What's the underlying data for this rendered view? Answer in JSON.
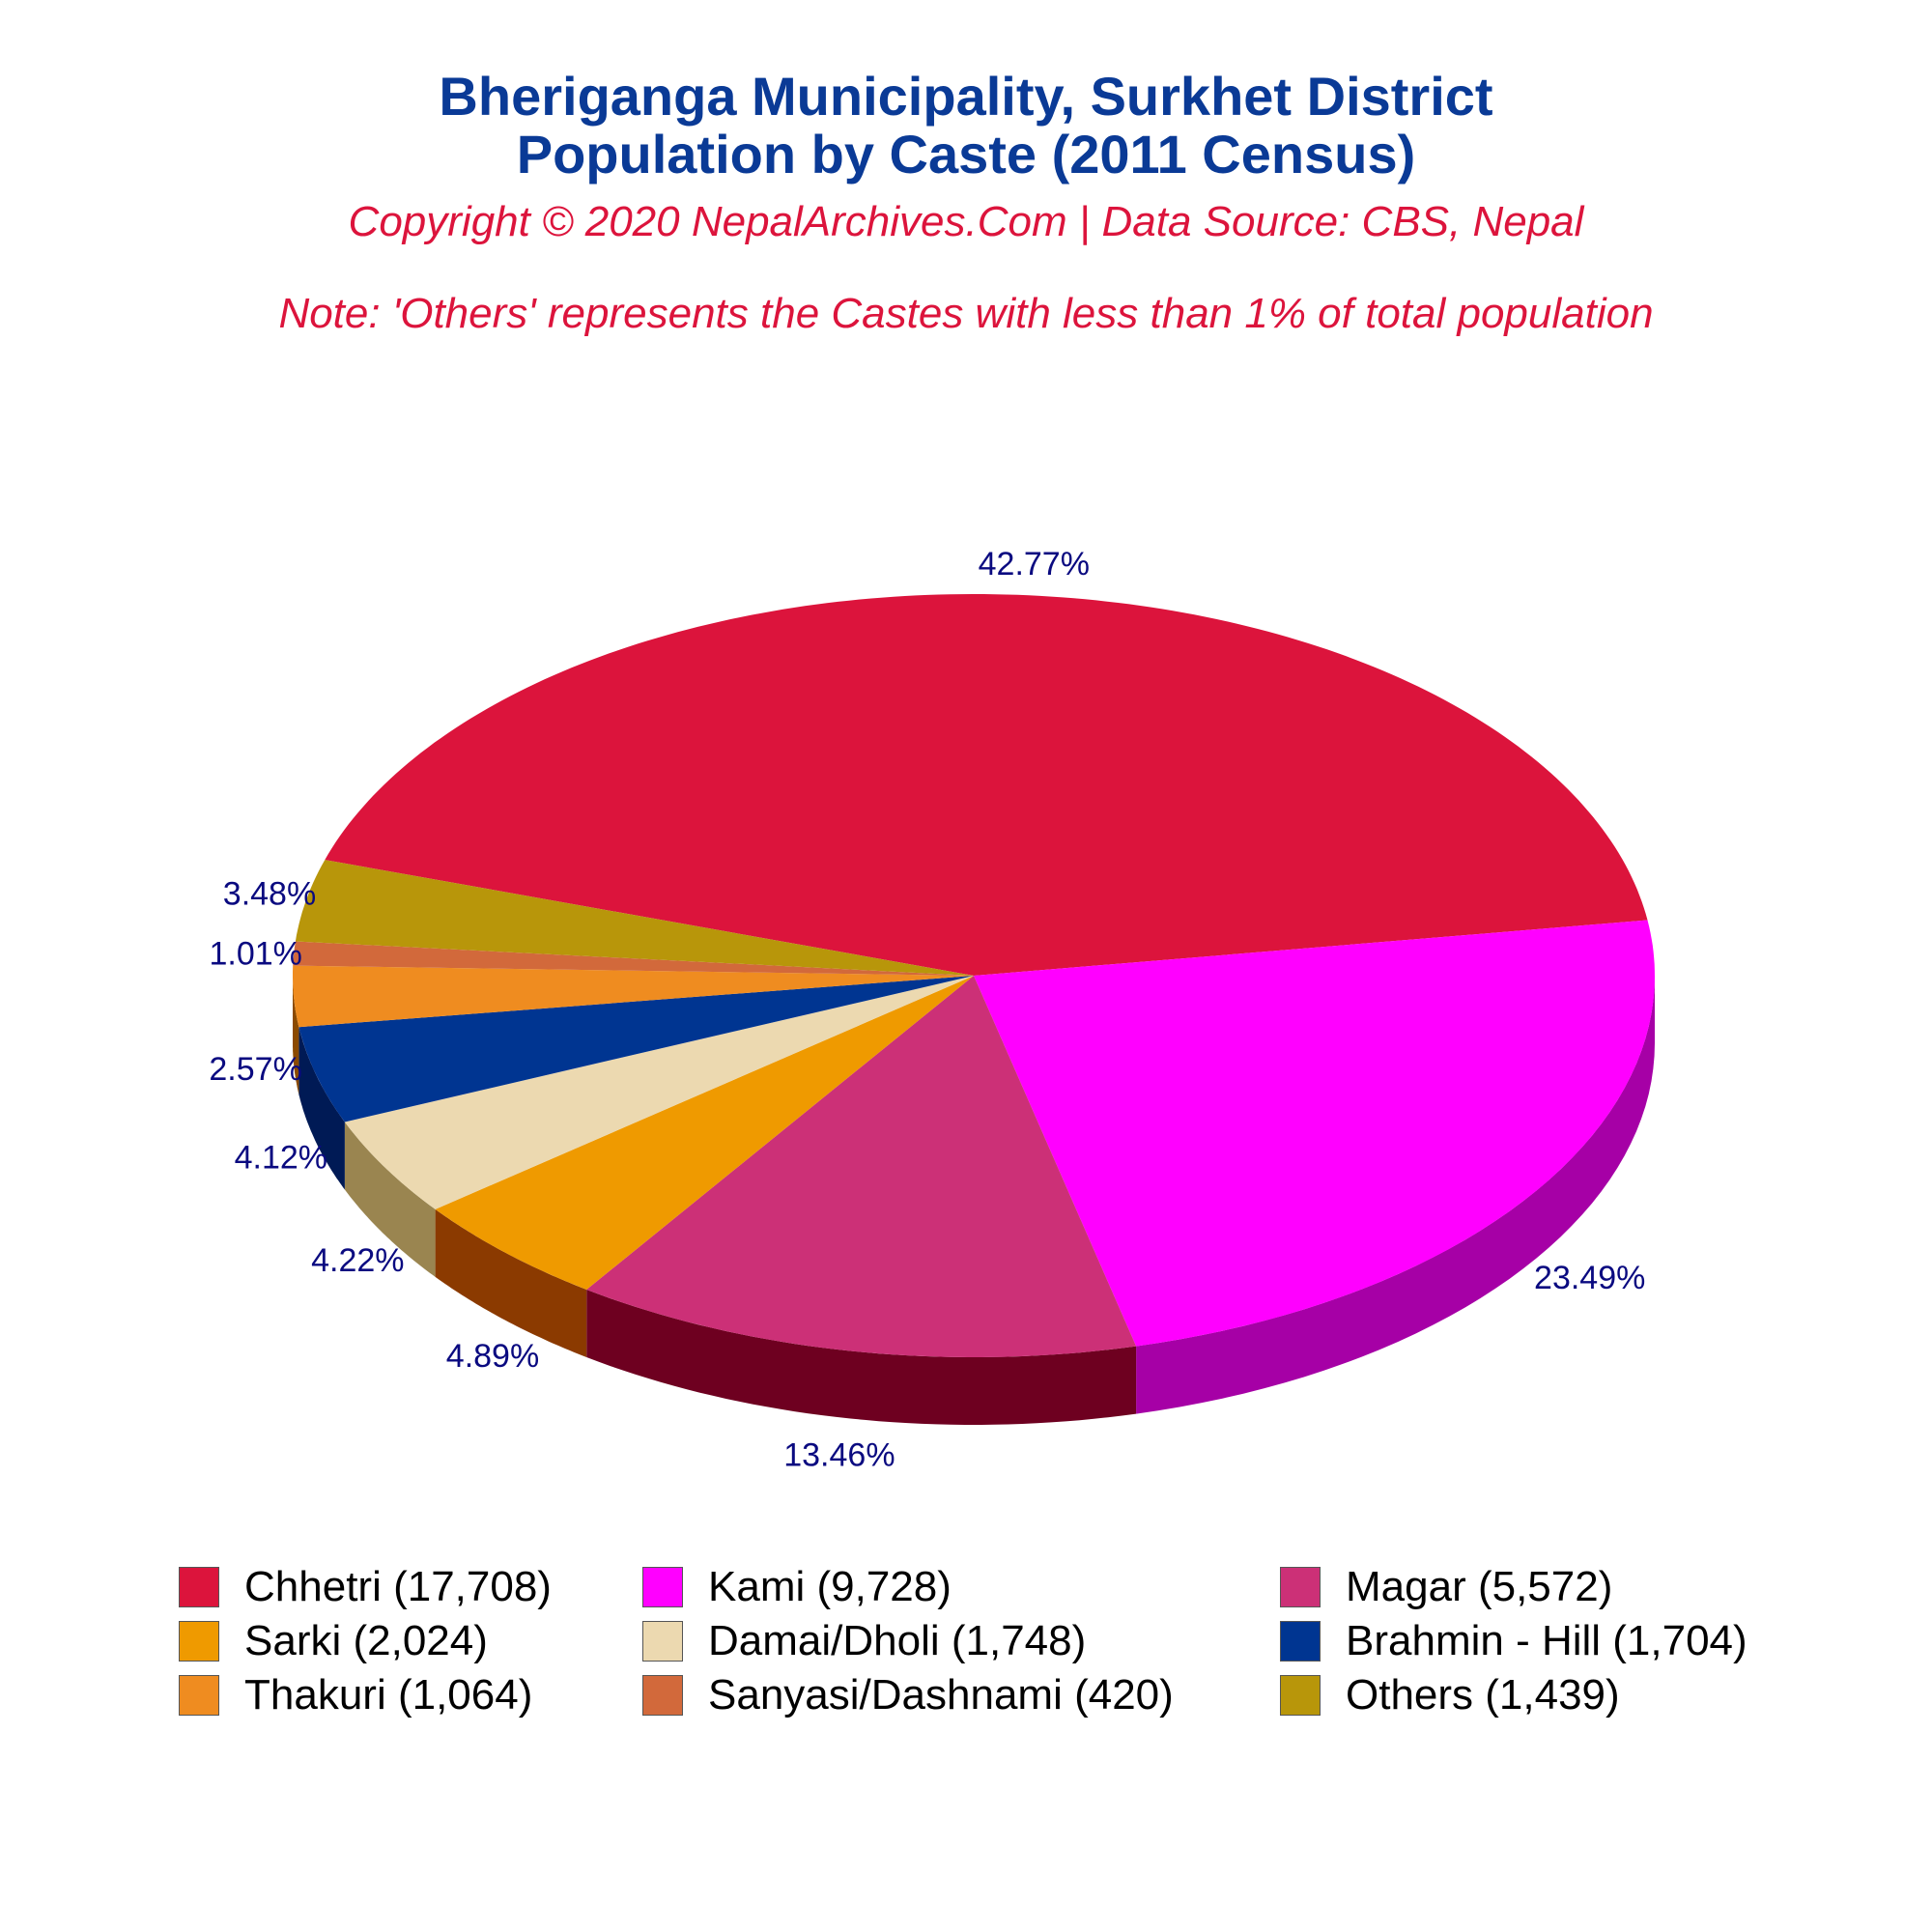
{
  "title_line1": "Bheriganga Municipality, Surkhet District",
  "title_line2": "Population by Caste (2011 Census)",
  "copyright": "Copyright © 2020 NepalArchives.Com | Data Source: CBS, Nepal",
  "note": "Note: 'Others' represents the Castes with less than 1% of total population",
  "chart_data": {
    "type": "pie",
    "style": "3d",
    "slices": [
      {
        "label": "Chhetri (17,708)",
        "value": 17708,
        "percent_label": "42.77%",
        "color": "#dc143c",
        "side_color": "#8b0000"
      },
      {
        "label": "Kami (9,728)",
        "value": 9728,
        "percent_label": "23.49%",
        "color": "#ff00ff",
        "side_color": "#a600a6"
      },
      {
        "label": "Magar (5,572)",
        "value": 5572,
        "percent_label": "13.46%",
        "color": "#cc3077",
        "side_color": "#6e0020"
      },
      {
        "label": "Sarki (2,024)",
        "value": 2024,
        "percent_label": "4.89%",
        "color": "#ef9a00",
        "side_color": "#8b3a00"
      },
      {
        "label": "Damai/Dholi (1,748)",
        "value": 1748,
        "percent_label": "4.22%",
        "color": "#ecd9b0",
        "side_color": "#9a8550"
      },
      {
        "label": "Brahmin - Hill (1,704)",
        "value": 1704,
        "percent_label": "4.12%",
        "color": "#003591",
        "side_color": "#001a55"
      },
      {
        "label": "Thakuri (1,064)",
        "value": 1064,
        "percent_label": "2.57%",
        "color": "#ef8c20",
        "side_color": "#8b4a00"
      },
      {
        "label": "Sanyasi/Dashnami (420)",
        "value": 420,
        "percent_label": "1.01%",
        "color": "#d2693b",
        "side_color": "#7a3010"
      },
      {
        "label": "Others (1,439)",
        "value": 1439,
        "percent_label": "3.48%",
        "color": "#b8960a",
        "side_color": "#6a5400"
      }
    ],
    "legend_position": "bottom"
  }
}
